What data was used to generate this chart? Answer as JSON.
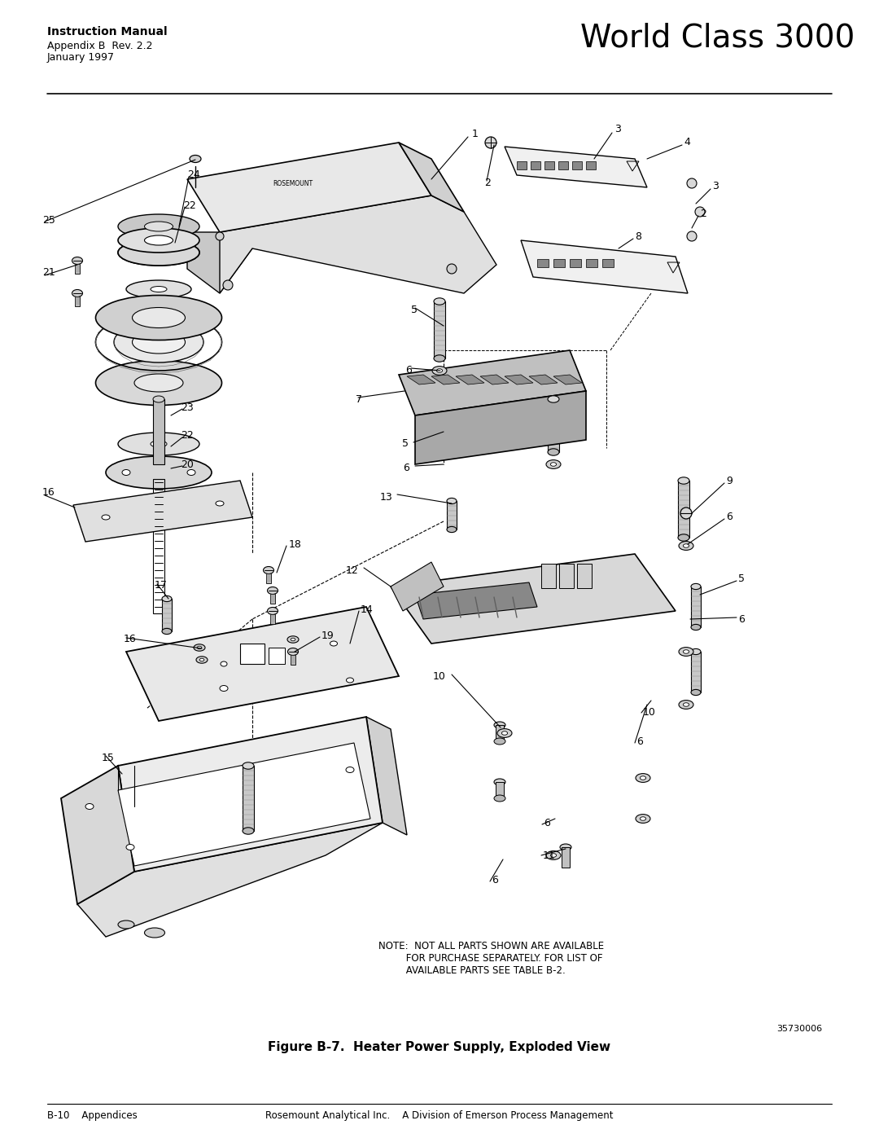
{
  "page_width": 10.8,
  "page_height": 13.97,
  "dpi": 100,
  "bg": "#ffffff",
  "header_bold": "Instruction Manual",
  "header_line2": "Appendix B  Rev. 2.2",
  "header_line3": "January 1997",
  "header_right": "World Class 3000",
  "footer_left": "B-10    Appendices",
  "footer_center": "Rosemount Analytical Inc.    A Division of Emerson Process Management",
  "figure_caption": "Figure B-7.  Heater Power Supply, Exploded View",
  "fig_number": "35730006",
  "note_line1": "NOTE:  NOT ALL PARTS SHOWN ARE AVAILABLE",
  "note_line2": "         FOR PURCHASE SEPARATELY. FOR LIST OF",
  "note_line3": "         AVAILABLE PARTS SEE TABLE B-2."
}
